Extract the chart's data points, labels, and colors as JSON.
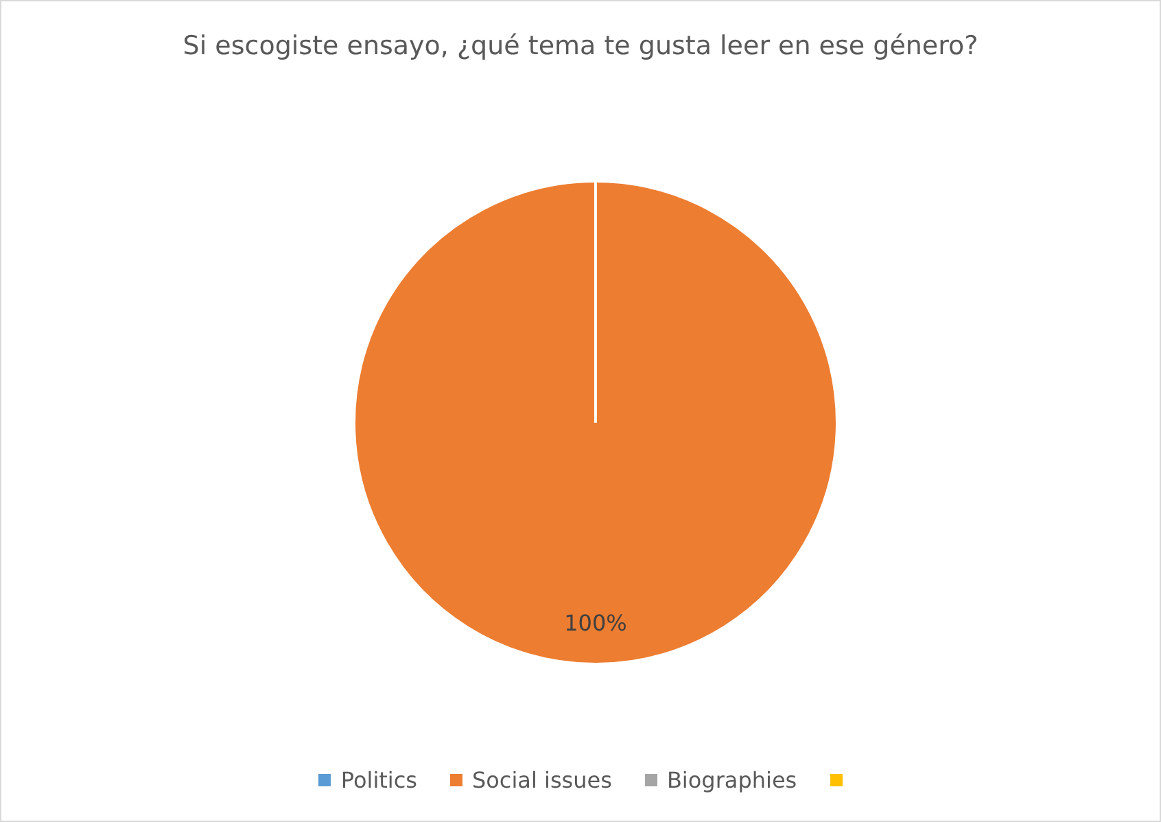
{
  "chart_data": {
    "type": "pie",
    "title": "Si escogiste ensayo, ¿qué tema te gusta leer en ese género?",
    "categories": [
      "Politics",
      "Social issues",
      "Biographies",
      null
    ],
    "values": [
      0,
      100,
      0,
      0
    ],
    "colors": [
      "#5b9bd5",
      "#ed7d31",
      "#a5a5a5",
      "#ffc000"
    ],
    "value_labels": [
      null,
      "100%",
      null,
      null
    ],
    "legend": "bottom"
  }
}
